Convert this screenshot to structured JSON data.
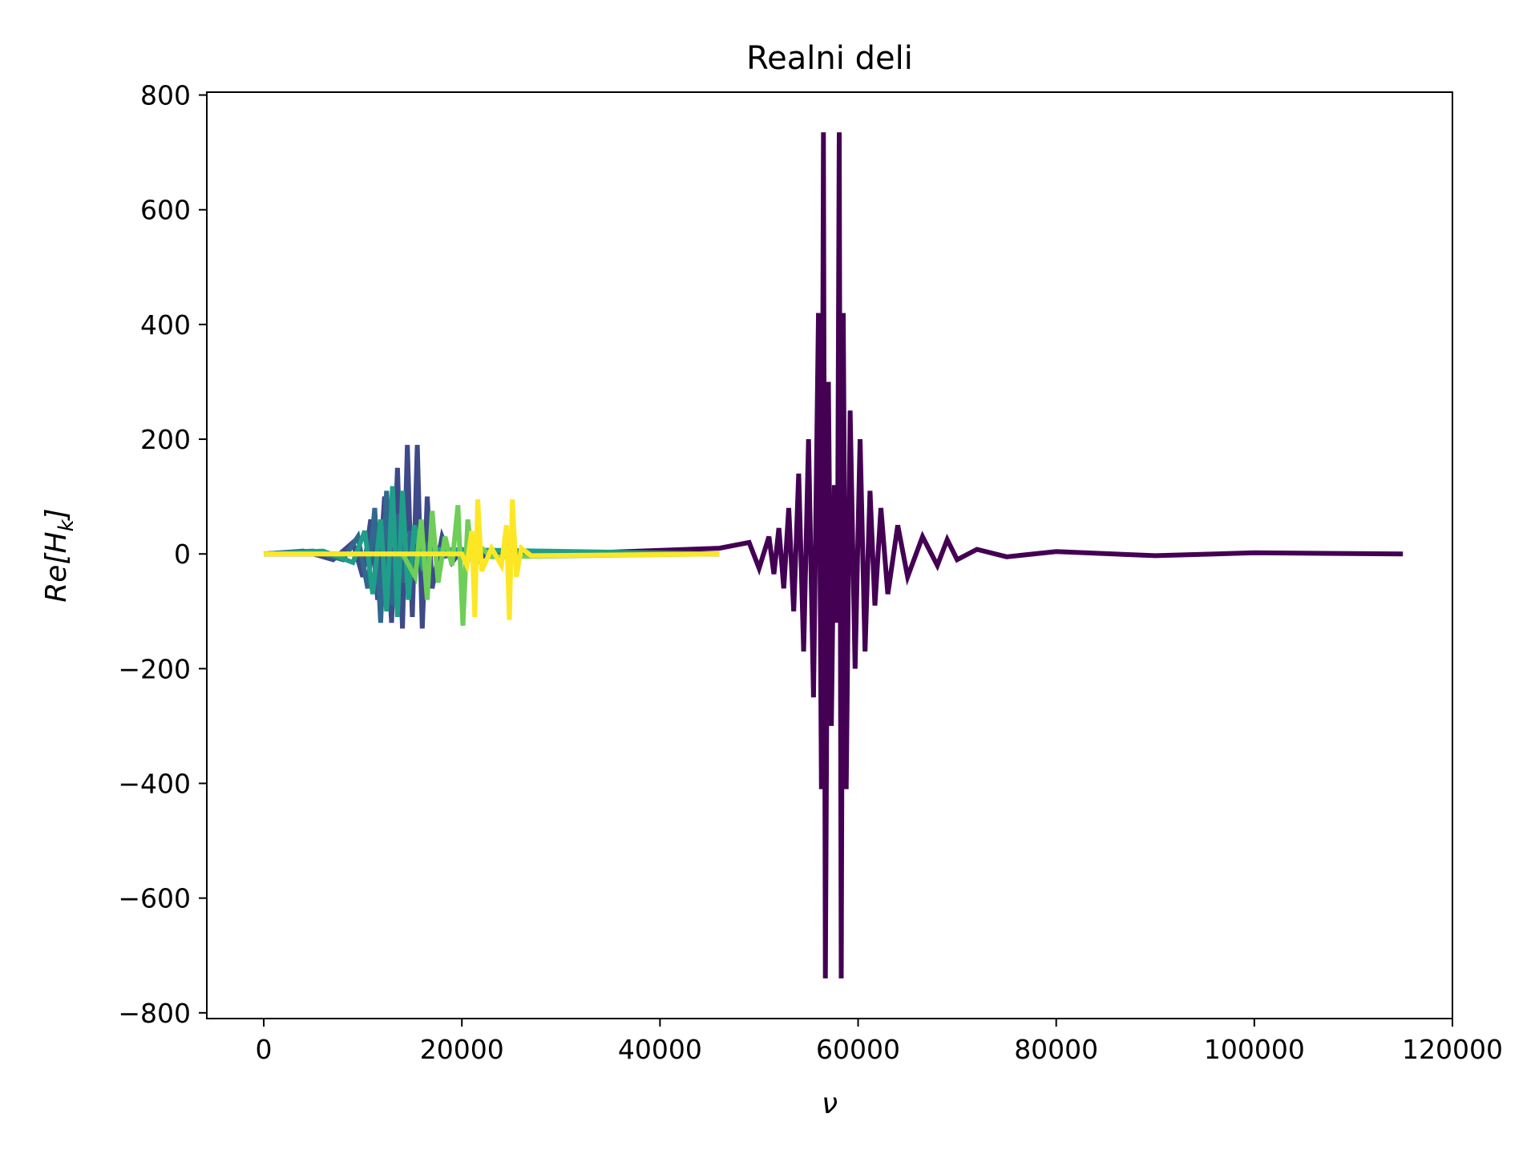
{
  "chart_data": {
    "type": "line",
    "title": "Realni deli",
    "xlabel": "ν",
    "ylabel": "Re[H",
    "ylabel_sub": "k",
    "ylabel_close": "]",
    "xlim": [
      -5750,
      120000
    ],
    "ylim": [
      -810,
      805
    ],
    "xticks": [
      0,
      20000,
      40000,
      60000,
      80000,
      100000,
      120000
    ],
    "xtick_labels": [
      "0",
      "20000",
      "40000",
      "60000",
      "80000",
      "100000",
      "120000"
    ],
    "yticks": [
      -800,
      -600,
      -400,
      -200,
      0,
      200,
      400,
      600,
      800
    ],
    "ytick_labels": [
      "−800",
      "−600",
      "−400",
      "−200",
      "0",
      "200",
      "400",
      "600",
      "800"
    ],
    "grid": false,
    "series": [
      {
        "color": "#440154",
        "x": [
          0,
          30000,
          46000,
          49000,
          50000,
          51000,
          51500,
          52000,
          52500,
          53000,
          53500,
          54000,
          54500,
          55000,
          55500,
          56000,
          56300,
          56500,
          56700,
          57000,
          57300,
          57600,
          57900,
          58100,
          58300,
          58500,
          58800,
          59200,
          59700,
          60200,
          60700,
          61200,
          61700,
          62300,
          63000,
          64000,
          65000,
          66500,
          68000,
          69000,
          70000,
          72000,
          75000,
          80000,
          90000,
          100000,
          115000
        ],
        "y": [
          0,
          0,
          10,
          20,
          -25,
          30,
          -35,
          45,
          -60,
          80,
          -100,
          140,
          -170,
          200,
          -250,
          420,
          -410,
          735,
          -740,
          300,
          -300,
          120,
          -120,
          735,
          -740,
          420,
          -410,
          250,
          -200,
          200,
          -170,
          110,
          -90,
          80,
          -70,
          50,
          -40,
          30,
          -20,
          25,
          -10,
          8,
          -5,
          4,
          -3,
          2,
          0
        ]
      },
      {
        "color": "#3e4a89",
        "x": [
          0,
          4000,
          7000,
          9000,
          10000,
          10800,
          11500,
          12200,
          12900,
          13500,
          14000,
          14500,
          15000,
          15500,
          16000,
          16500,
          17000,
          18000,
          19000,
          20000,
          22000,
          24000,
          27000,
          30000,
          46000
        ],
        "y": [
          0,
          5,
          -10,
          20,
          -40,
          60,
          -80,
          100,
          -120,
          150,
          -130,
          190,
          -110,
          190,
          -130,
          100,
          -60,
          30,
          -15,
          8,
          -5,
          4,
          -2,
          0,
          0
        ]
      },
      {
        "color": "#31688e",
        "x": [
          0,
          5000,
          8000,
          9500,
          10500,
          11200,
          11800,
          12400,
          13000,
          13600,
          14200,
          14800,
          15500,
          16500,
          18000,
          20000,
          46000
        ],
        "y": [
          0,
          5,
          -10,
          30,
          -60,
          80,
          -120,
          110,
          -90,
          70,
          -50,
          40,
          -20,
          15,
          -5,
          2,
          0
        ]
      },
      {
        "color": "#1f9e89",
        "x": [
          0,
          6000,
          9000,
          10200,
          11000,
          11800,
          12400,
          13000,
          13500,
          14000,
          14600,
          15200,
          16000,
          17000,
          46000
        ],
        "y": [
          0,
          5,
          -15,
          40,
          -70,
          60,
          -100,
          118,
          -110,
          110,
          -80,
          50,
          -20,
          8,
          0
        ]
      },
      {
        "color": "#6ece58",
        "x": [
          0,
          14000,
          15300,
          15900,
          16500,
          17000,
          17600,
          18300,
          19000,
          19600,
          20100,
          20600,
          21200,
          22000,
          23000,
          46000
        ],
        "y": [
          0,
          0,
          -40,
          60,
          -80,
          75,
          -50,
          30,
          -20,
          85,
          -125,
          60,
          -30,
          10,
          -5,
          0
        ]
      },
      {
        "color": "#fde725",
        "x": [
          0,
          20000,
          20500,
          21000,
          21300,
          21600,
          22000,
          23000,
          24000,
          24500,
          24800,
          25100,
          25500,
          26000,
          27000,
          46000
        ],
        "y": [
          0,
          0,
          -20,
          40,
          -110,
          95,
          -30,
          10,
          -20,
          50,
          -115,
          95,
          -40,
          10,
          -3,
          0
        ]
      }
    ]
  }
}
